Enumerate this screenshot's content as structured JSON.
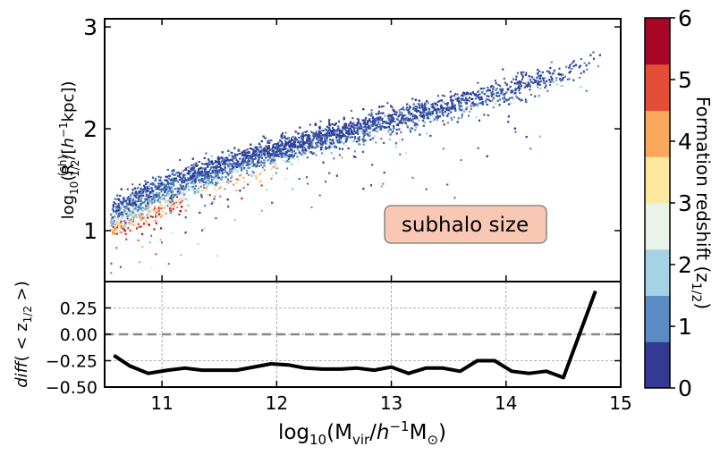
{
  "chart_data": [
    {
      "type": "scatter",
      "panel": "top",
      "ylabel": "log10(R(sh)1/2 /[h−1kpc])",
      "ylabel_parts": {
        "log": "log",
        "sub10": "10",
        "open": "(R",
        "sup": "(sh)",
        "sub": "1/2",
        "slash": "/[",
        "h": "h",
        "exp": "−1",
        "unit": "kpc])"
      },
      "xlim": [
        10.5,
        15.0
      ],
      "ylim": [
        0.5,
        3.08
      ],
      "yticks": [
        1,
        2,
        3
      ],
      "ytick_labels": [
        "1",
        "2",
        "3"
      ],
      "annotation": "subhalo size",
      "color_encoding": "Formation redshift (z1/2)",
      "trend": {
        "log_mvir": [
          10.55,
          11.0,
          11.5,
          12.0,
          12.5,
          13.0,
          13.5,
          14.0,
          14.5,
          14.9
        ],
        "log_r_half_low_z": [
          1.22,
          1.47,
          1.66,
          1.82,
          1.96,
          2.1,
          2.24,
          2.39,
          2.56,
          2.72
        ],
        "log_r_half_high_z": [
          1.0,
          1.2,
          1.4,
          1.58,
          1.74,
          1.9,
          2.05,
          2.22,
          2.4,
          2.58
        ]
      }
    },
    {
      "type": "line",
      "panel": "bottom",
      "ylabel": "diff( < z1/2 >)",
      "ylabel_parts": {
        "diff": "diff",
        "open": "( < z",
        "sub": "1/2",
        "close": " >)"
      },
      "xlabel": "log10(Mvir/h−1M⊙)",
      "xlabel_parts": {
        "log": "log",
        "sub10": "10",
        "open": "(M",
        "subvir": "vir",
        "slash": "/",
        "h": "h",
        "exp": "−1",
        "m": "M",
        "sun": "⊙",
        "close": ")"
      },
      "xlim": [
        10.5,
        15.0
      ],
      "ylim": [
        -0.5,
        0.5
      ],
      "xticks": [
        11,
        12,
        13,
        14,
        15
      ],
      "xtick_labels": [
        "11",
        "12",
        "13",
        "14",
        "15"
      ],
      "yticks": [
        -0.5,
        -0.25,
        0.0,
        0.25
      ],
      "ytick_labels": [
        "−0.50",
        "−0.25",
        "0.00",
        "0.25"
      ],
      "reference_line_y": 0.0,
      "x": [
        10.58,
        10.72,
        10.88,
        11.05,
        11.2,
        11.35,
        11.5,
        11.65,
        11.8,
        11.95,
        12.1,
        12.25,
        12.4,
        12.55,
        12.7,
        12.85,
        13.0,
        13.15,
        13.3,
        13.45,
        13.6,
        13.75,
        13.9,
        14.05,
        14.2,
        14.35,
        14.5,
        14.78
      ],
      "y": [
        -0.2,
        -0.3,
        -0.37,
        -0.34,
        -0.32,
        -0.34,
        -0.34,
        -0.34,
        -0.31,
        -0.28,
        -0.29,
        -0.32,
        -0.33,
        -0.33,
        -0.32,
        -0.34,
        -0.31,
        -0.37,
        -0.32,
        -0.32,
        -0.35,
        -0.25,
        -0.25,
        -0.35,
        -0.37,
        -0.35,
        -0.41,
        0.41
      ]
    }
  ],
  "colorbar": {
    "label": "Formation redshift (z1/2)",
    "label_parts": {
      "main": "Formation redshift (z",
      "sub": "1/2",
      "close": ")"
    },
    "range": [
      0,
      6
    ],
    "ticks": [
      0,
      1,
      2,
      3,
      4,
      5,
      6
    ],
    "tick_labels": [
      "0",
      "1",
      "2",
      "3",
      "4",
      "5",
      "6"
    ],
    "colors": [
      "#313695",
      "#4575b4",
      "#74add1",
      "#abd9e9",
      "#e0f3f8",
      "#fee090",
      "#fdae61",
      "#f46d43",
      "#d73027",
      "#a50026"
    ],
    "band_colors": [
      "#343a94",
      "#5b8cc3",
      "#a6d2e6",
      "#e8f4ea",
      "#fde8a0",
      "#fca85c",
      "#e34e36",
      "#a80627"
    ]
  }
}
